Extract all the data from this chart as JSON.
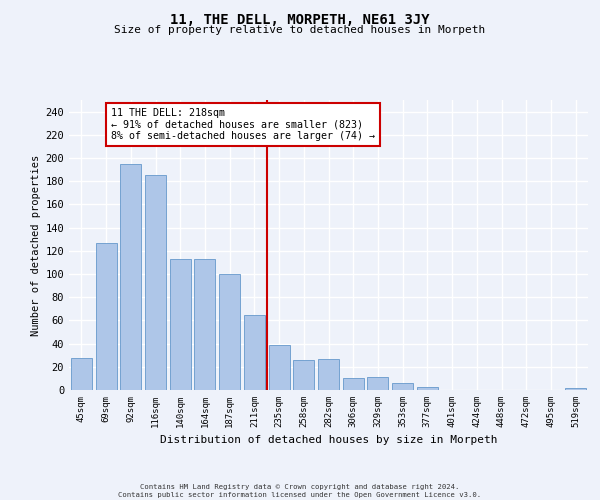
{
  "title": "11, THE DELL, MORPETH, NE61 3JY",
  "subtitle": "Size of property relative to detached houses in Morpeth",
  "xlabel": "Distribution of detached houses by size in Morpeth",
  "ylabel": "Number of detached properties",
  "bar_values": [
    28,
    127,
    195,
    185,
    113,
    113,
    100,
    65,
    39,
    26,
    27,
    10,
    11,
    6,
    3,
    0,
    0,
    0,
    0,
    0,
    2
  ],
  "bar_labels": [
    "45sqm",
    "69sqm",
    "92sqm",
    "116sqm",
    "140sqm",
    "164sqm",
    "187sqm",
    "211sqm",
    "235sqm",
    "258sqm",
    "282sqm",
    "306sqm",
    "329sqm",
    "353sqm",
    "377sqm",
    "401sqm",
    "424sqm",
    "448sqm",
    "472sqm",
    "495sqm",
    "519sqm"
  ],
  "bar_color": "#aec6e8",
  "bar_edge_color": "#6699cc",
  "background_color": "#eef2fa",
  "grid_color": "#ffffff",
  "vline_x": 7.5,
  "vline_color": "#cc0000",
  "annotation_text": "11 THE DELL: 218sqm\n← 91% of detached houses are smaller (823)\n8% of semi-detached houses are larger (74) →",
  "annotation_box_color": "#ffffff",
  "annotation_box_edge": "#cc0000",
  "ylim": [
    0,
    250
  ],
  "yticks": [
    0,
    20,
    40,
    60,
    80,
    100,
    120,
    140,
    160,
    180,
    200,
    220,
    240
  ],
  "footer_line1": "Contains HM Land Registry data © Crown copyright and database right 2024.",
  "footer_line2": "Contains public sector information licensed under the Open Government Licence v3.0."
}
